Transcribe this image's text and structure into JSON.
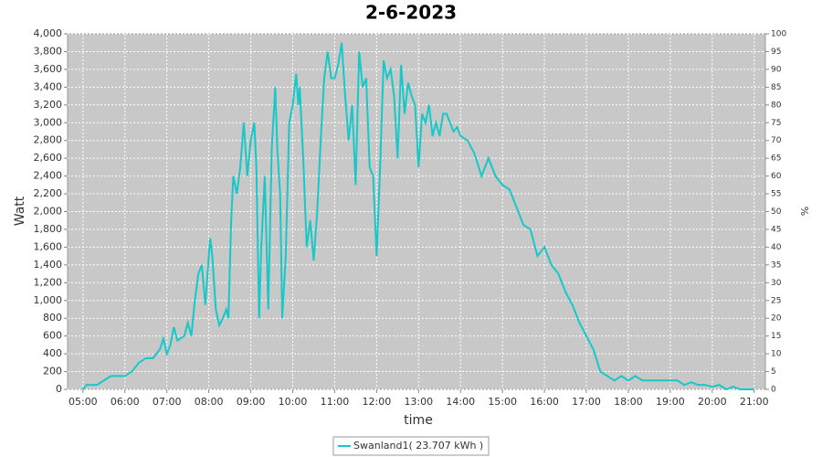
{
  "chart_data": {
    "type": "line",
    "title": "2-6-2023",
    "x_label": "time",
    "y_label": "Watt",
    "y2_label": "%",
    "xlim": [
      "04:38",
      "21:16"
    ],
    "xticks": [
      "05:00",
      "06:00",
      "07:00",
      "08:00",
      "09:00",
      "10:00",
      "11:00",
      "12:00",
      "13:00",
      "14:00",
      "15:00",
      "16:00",
      "17:00",
      "18:00",
      "19:00",
      "20:00",
      "21:00"
    ],
    "ylim": [
      0,
      4000
    ],
    "yticks": [
      0,
      200,
      400,
      600,
      800,
      {
        "value": 1000,
        "label": "1,000"
      },
      {
        "value": 1200,
        "label": "1,200"
      },
      {
        "value": 1400,
        "label": "1,400"
      },
      {
        "value": 1600,
        "label": "1,600"
      },
      {
        "value": 1800,
        "label": "1,800"
      },
      {
        "value": 2000,
        "label": "2,000"
      },
      {
        "value": 2200,
        "label": "2,200"
      },
      {
        "value": 2400,
        "label": "2,400"
      },
      {
        "value": 2600,
        "label": "2,600"
      },
      {
        "value": 2800,
        "label": "2,800"
      },
      {
        "value": 3000,
        "label": "3,000"
      },
      {
        "value": 3200,
        "label": "3,200"
      },
      {
        "value": 3400,
        "label": "3,400"
      },
      {
        "value": 3600,
        "label": "3,600"
      },
      {
        "value": 3800,
        "label": "3,800"
      },
      {
        "value": 4000,
        "label": "4,000"
      }
    ],
    "y2lim": [
      0,
      100
    ],
    "y2ticks": [
      0,
      5,
      10,
      15,
      20,
      25,
      30,
      35,
      40,
      45,
      50,
      55,
      60,
      65,
      70,
      75,
      80,
      85,
      90,
      95,
      100
    ],
    "grid": true,
    "legend": "bottom",
    "x": [
      "05:00",
      "05:05",
      "05:20",
      "05:30",
      "05:40",
      "06:00",
      "06:10",
      "06:20",
      "06:30",
      "06:40",
      "06:50",
      "06:55",
      "07:00",
      "07:05",
      "07:10",
      "07:15",
      "07:25",
      "07:30",
      "07:35",
      "07:40",
      "07:45",
      "07:50",
      "07:55",
      "08:00",
      "08:02",
      "08:05",
      "08:10",
      "08:15",
      "08:20",
      "08:25",
      "08:28",
      "08:32",
      "08:35",
      "08:40",
      "08:45",
      "08:50",
      "08:55",
      "09:00",
      "09:05",
      "09:08",
      "09:12",
      "09:15",
      "09:20",
      "09:25",
      "09:30",
      "09:35",
      "09:38",
      "09:42",
      "09:45",
      "09:50",
      "09:55",
      "10:00",
      "10:05",
      "10:08",
      "10:10",
      "10:15",
      "10:20",
      "10:25",
      "10:30",
      "10:35",
      "10:40",
      "10:45",
      "10:50",
      "10:55",
      "11:00",
      "11:05",
      "11:10",
      "11:15",
      "11:20",
      "11:25",
      "11:30",
      "11:35",
      "11:40",
      "11:45",
      "11:50",
      "11:55",
      "12:00",
      "12:05",
      "12:10",
      "12:15",
      "12:20",
      "12:25",
      "12:30",
      "12:35",
      "12:40",
      "12:45",
      "12:50",
      "12:55",
      "13:00",
      "13:05",
      "13:10",
      "13:15",
      "13:20",
      "13:25",
      "13:30",
      "13:35",
      "13:40",
      "13:45",
      "13:50",
      "13:55",
      "14:00",
      "14:10",
      "14:20",
      "14:30",
      "14:40",
      "14:50",
      "15:00",
      "15:10",
      "15:20",
      "15:30",
      "15:40",
      "15:50",
      "16:00",
      "16:10",
      "16:20",
      "16:30",
      "16:40",
      "16:50",
      "17:00",
      "17:10",
      "17:20",
      "17:30",
      "17:40",
      "17:50",
      "18:00",
      "18:10",
      "18:20",
      "18:30",
      "18:40",
      "18:50",
      "19:00",
      "19:10",
      "19:20",
      "19:30",
      "19:40",
      "19:50",
      "20:00",
      "20:10",
      "20:20",
      "20:30",
      "20:40",
      "21:00"
    ],
    "series": [
      {
        "name": "Swanland1( 23.707 kWh )",
        "color": "#17c8c8",
        "values": [
          0,
          50,
          50,
          100,
          150,
          150,
          200,
          300,
          350,
          350,
          450,
          570,
          400,
          500,
          700,
          550,
          600,
          750,
          600,
          1000,
          1300,
          1400,
          950,
          1500,
          1700,
          1500,
          900,
          720,
          800,
          900,
          800,
          1900,
          2400,
          2200,
          2500,
          3000,
          2400,
          2800,
          3000,
          2500,
          800,
          1600,
          2400,
          900,
          2700,
          3400,
          2700,
          2200,
          800,
          1500,
          3000,
          3200,
          3550,
          3200,
          3400,
          2600,
          1600,
          1900,
          1450,
          2000,
          2800,
          3500,
          3800,
          3500,
          3500,
          3650,
          3900,
          3300,
          2800,
          3200,
          2300,
          3800,
          3400,
          3500,
          2500,
          2400,
          1500,
          2500,
          3700,
          3500,
          3600,
          3300,
          2600,
          3650,
          3100,
          3450,
          3300,
          3200,
          2500,
          3100,
          3000,
          3200,
          2850,
          3000,
          2850,
          3100,
          3100,
          3000,
          2900,
          2950,
          2850,
          2800,
          2650,
          2400,
          2600,
          2400,
          2300,
          2250,
          2050,
          1850,
          1800,
          1500,
          1600,
          1400,
          1300,
          1100,
          950,
          750,
          600,
          450,
          200,
          150,
          100,
          150,
          100,
          150,
          100,
          100,
          100,
          100,
          100,
          100,
          50,
          80,
          50,
          50,
          30,
          50,
          0,
          30,
          0,
          0
        ]
      }
    ]
  }
}
